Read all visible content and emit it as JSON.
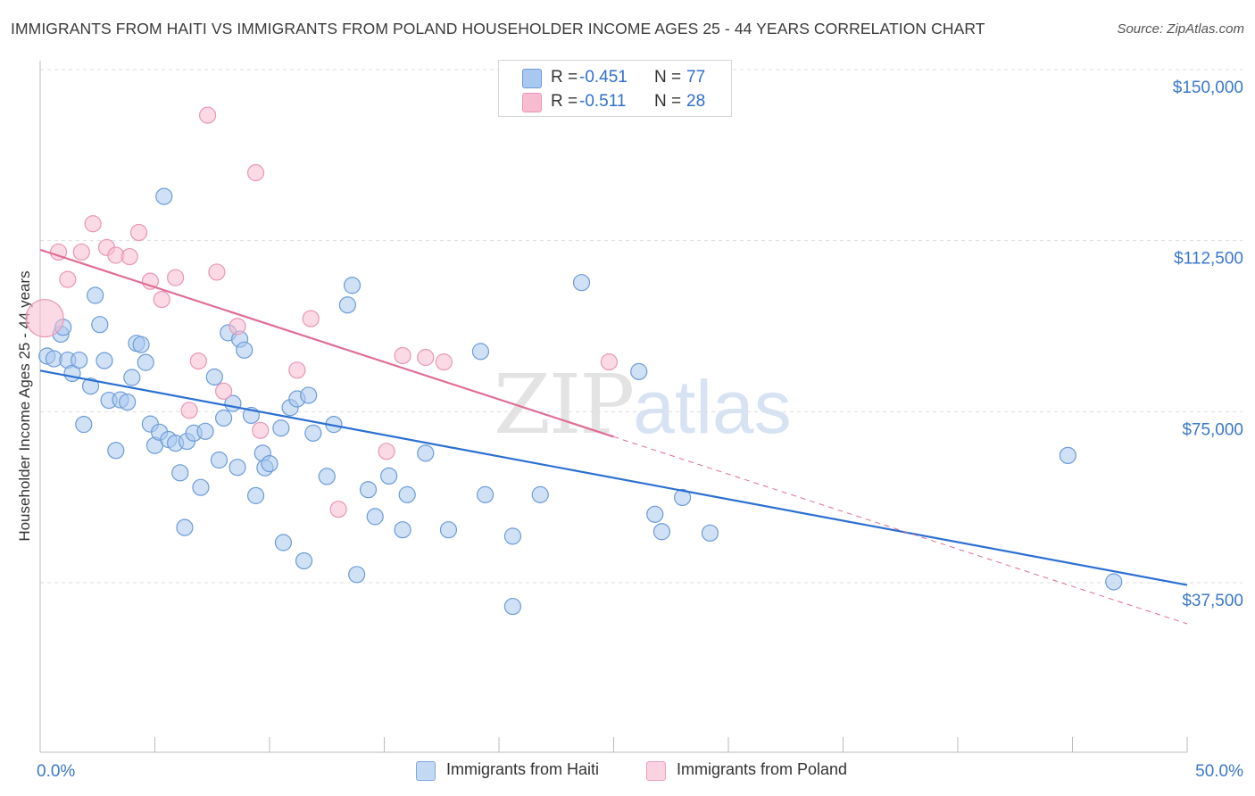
{
  "title": "IMMIGRANTS FROM HAITI VS IMMIGRANTS FROM POLAND HOUSEHOLDER INCOME AGES 25 - 44 YEARS CORRELATION CHART",
  "source": "Source: ZipAtlas.com",
  "watermark": {
    "zip": "ZIP",
    "atlas": "atlas"
  },
  "colors": {
    "haiti_fill": "#a9c8ef",
    "haiti_stroke": "#6c9bd8",
    "haiti_line": "#2b6fd2",
    "poland_fill": "#f7bcd0",
    "poland_stroke": "#e996b4",
    "poland_line": "#e06c96",
    "tick_label": "#3a78c9",
    "grid": "#dedede"
  },
  "legend": {
    "rows": [
      {
        "series": "haiti",
        "r_label": "R =",
        "r_value": "-0.451",
        "n_label": "N =",
        "n_value": "77"
      },
      {
        "series": "poland",
        "r_label": "R =",
        "r_value": "-0.511",
        "n_label": "N =",
        "n_value": "28"
      }
    ]
  },
  "bottom_legend": {
    "haiti": "Immigrants from Haiti",
    "poland": "Immigrants from Poland"
  },
  "chart_data": {
    "type": "scatter",
    "title": "IMMIGRANTS FROM HAITI VS IMMIGRANTS FROM POLAND HOUSEHOLDER INCOME AGES 25 - 44 YEARS CORRELATION CHART",
    "xlabel": "",
    "ylabel": "Householder Income Ages 25 - 44 years",
    "xlim": [
      0,
      50
    ],
    "ylim": [
      0,
      157000
    ],
    "x_tick_labels": [
      {
        "value": 0,
        "label": "0.0%"
      },
      {
        "value": 50,
        "label": "50.0%"
      }
    ],
    "y_ticks": [
      {
        "value": 37500,
        "label": "$37,500"
      },
      {
        "value": 75000,
        "label": "$75,000"
      },
      {
        "value": 112500,
        "label": "$112,500"
      },
      {
        "value": 150000,
        "label": "$150,000"
      }
    ],
    "x_minor_ticks": [
      0,
      5,
      10,
      15,
      20,
      25,
      30,
      35,
      40,
      45,
      50
    ],
    "series": [
      {
        "name": "Immigrants from Haiti",
        "key": "haiti",
        "trend": {
          "x0": 0,
          "y0": 84000,
          "x1": 50,
          "y1": 37000,
          "solid_until": 50
        },
        "points": [
          [
            0.3,
            87200
          ],
          [
            0.6,
            86600
          ],
          [
            0.9,
            92000
          ],
          [
            1.0,
            93500
          ],
          [
            1.2,
            86300
          ],
          [
            1.4,
            83400
          ],
          [
            1.7,
            86300
          ],
          [
            1.9,
            72200
          ],
          [
            2.2,
            80600
          ],
          [
            2.4,
            100500
          ],
          [
            2.6,
            94100
          ],
          [
            2.8,
            86200
          ],
          [
            3.0,
            77500
          ],
          [
            3.3,
            66500
          ],
          [
            3.5,
            77600
          ],
          [
            3.8,
            77100
          ],
          [
            4.0,
            82500
          ],
          [
            4.2,
            90000
          ],
          [
            4.4,
            89700
          ],
          [
            4.6,
            85800
          ],
          [
            4.8,
            72300
          ],
          [
            5.0,
            67600
          ],
          [
            5.2,
            70500
          ],
          [
            5.4,
            122200
          ],
          [
            5.6,
            68900
          ],
          [
            5.9,
            68100
          ],
          [
            6.1,
            61600
          ],
          [
            6.3,
            49600
          ],
          [
            6.4,
            68500
          ],
          [
            6.7,
            70300
          ],
          [
            7.0,
            58400
          ],
          [
            7.2,
            70700
          ],
          [
            7.6,
            82600
          ],
          [
            7.8,
            64400
          ],
          [
            8.0,
            73600
          ],
          [
            8.2,
            92300
          ],
          [
            8.4,
            76800
          ],
          [
            8.6,
            62800
          ],
          [
            8.7,
            90900
          ],
          [
            8.9,
            88500
          ],
          [
            9.2,
            74200
          ],
          [
            9.4,
            56600
          ],
          [
            9.7,
            65900
          ],
          [
            9.8,
            62700
          ],
          [
            10.0,
            63600
          ],
          [
            10.5,
            71400
          ],
          [
            10.6,
            46300
          ],
          [
            10.9,
            75900
          ],
          [
            11.2,
            77800
          ],
          [
            11.5,
            42300
          ],
          [
            11.7,
            78600
          ],
          [
            11.9,
            70300
          ],
          [
            12.5,
            60800
          ],
          [
            12.8,
            72200
          ],
          [
            13.4,
            98400
          ],
          [
            13.6,
            102700
          ],
          [
            13.8,
            39300
          ],
          [
            14.3,
            57900
          ],
          [
            14.6,
            52000
          ],
          [
            15.2,
            60900
          ],
          [
            15.8,
            49100
          ],
          [
            16.0,
            56800
          ],
          [
            16.8,
            65900
          ],
          [
            17.8,
            49100
          ],
          [
            19.2,
            88200
          ],
          [
            19.4,
            56800
          ],
          [
            20.6,
            47700
          ],
          [
            20.6,
            32300
          ],
          [
            21.8,
            56800
          ],
          [
            23.6,
            103300
          ],
          [
            26.1,
            83800
          ],
          [
            26.8,
            52500
          ],
          [
            27.1,
            48700
          ],
          [
            28.0,
            56200
          ],
          [
            29.2,
            48400
          ],
          [
            44.8,
            65400
          ],
          [
            46.8,
            37700
          ]
        ]
      },
      {
        "name": "Immigrants from Poland",
        "key": "poland",
        "trend": {
          "x0": 0,
          "y0": 110500,
          "x1": 50,
          "y1": 28500,
          "solid_until": 25
        },
        "points": [
          [
            0.2,
            95500,
            "large"
          ],
          [
            0.8,
            110000
          ],
          [
            1.2,
            104000
          ],
          [
            1.8,
            110000
          ],
          [
            2.3,
            116200
          ],
          [
            2.9,
            111000
          ],
          [
            3.3,
            109300
          ],
          [
            3.9,
            109000
          ],
          [
            4.3,
            114300
          ],
          [
            4.8,
            103600
          ],
          [
            5.3,
            99600
          ],
          [
            5.9,
            104400
          ],
          [
            6.5,
            75300
          ],
          [
            6.9,
            86100
          ],
          [
            7.3,
            140000
          ],
          [
            7.7,
            105600
          ],
          [
            8.0,
            79500
          ],
          [
            8.6,
            93700
          ],
          [
            9.4,
            127400
          ],
          [
            9.6,
            70900
          ],
          [
            11.2,
            84100
          ],
          [
            11.8,
            95400
          ],
          [
            13.0,
            53600
          ],
          [
            15.1,
            66300
          ],
          [
            15.8,
            87300
          ],
          [
            16.8,
            86900
          ],
          [
            17.6,
            85900
          ],
          [
            24.8,
            85900
          ]
        ]
      }
    ]
  }
}
